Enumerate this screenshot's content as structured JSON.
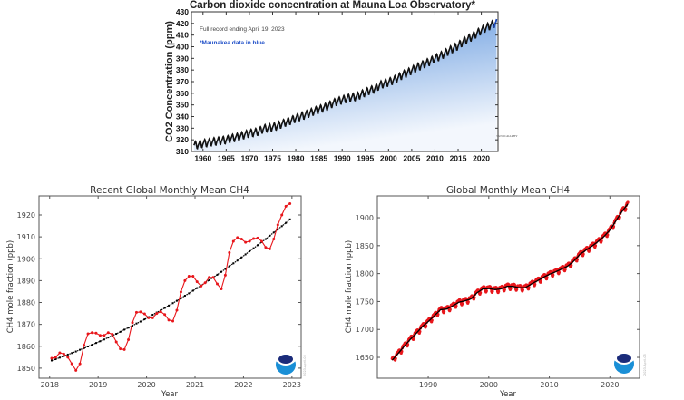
{
  "chart_data": [
    {
      "type": "area",
      "title": "Carbon dioxide concentration at Mauna Loa Observatory*",
      "ylabel": "CO2 Concentration (ppm)",
      "xlabel": "",
      "notes": [
        "Full record ending April 19, 2023",
        "*Maunakea data in blue"
      ],
      "logos": [
        "UC San Diego",
        "SCRIPPS INSTITUTION OF OCEANOGRAPHY"
      ],
      "xlim": [
        1957.5,
        2023.6
      ],
      "ylim": [
        310,
        430
      ],
      "xticks": [
        1960,
        1965,
        1970,
        1975,
        1980,
        1985,
        1990,
        1995,
        2000,
        2005,
        2010,
        2015,
        2020
      ],
      "yticks": [
        310,
        320,
        330,
        340,
        350,
        360,
        370,
        380,
        390,
        400,
        410,
        420,
        430
      ],
      "annual_x": [
        1958,
        1959,
        1960,
        1961,
        1962,
        1963,
        1964,
        1965,
        1966,
        1967,
        1968,
        1969,
        1970,
        1971,
        1972,
        1973,
        1974,
        1975,
        1976,
        1977,
        1978,
        1979,
        1980,
        1981,
        1982,
        1983,
        1984,
        1985,
        1986,
        1987,
        1988,
        1989,
        1990,
        1991,
        1992,
        1993,
        1994,
        1995,
        1996,
        1997,
        1998,
        1999,
        2000,
        2001,
        2002,
        2003,
        2004,
        2005,
        2006,
        2007,
        2008,
        2009,
        2010,
        2011,
        2012,
        2013,
        2014,
        2015,
        2016,
        2017,
        2018,
        2019,
        2020,
        2021,
        2022,
        2023
      ],
      "annual_mean": [
        315.3,
        315.98,
        316.91,
        317.64,
        318.45,
        318.99,
        319.62,
        320.04,
        321.37,
        322.18,
        323.05,
        324.62,
        325.68,
        326.32,
        327.46,
        329.68,
        330.19,
        331.12,
        332.03,
        333.84,
        335.41,
        336.84,
        338.76,
        340.12,
        341.48,
        343.15,
        344.87,
        346.35,
        347.61,
        349.31,
        351.69,
        353.2,
        354.45,
        355.7,
        356.54,
        357.21,
        358.96,
        360.97,
        362.74,
        363.88,
        366.84,
        368.54,
        369.71,
        371.32,
        373.45,
        375.98,
        377.7,
        379.98,
        382.09,
        384.02,
        385.83,
        387.64,
        390.1,
        391.85,
        394.06,
        396.74,
        398.81,
        401.01,
        404.41,
        406.76,
        408.72,
        411.66,
        414.24,
        416.45,
        418.56,
        420.5
      ],
      "seasonal_cycle_ppm": [
        0.0,
        0.7,
        1.4,
        2.6,
        3.1,
        2.4,
        0.8,
        -1.4,
        -3.1,
        -3.3,
        -2.0,
        -0.8
      ],
      "colors": {
        "data": "#111111",
        "fill_top": "#5b93dc",
        "fill_bottom": "#f3f7fd",
        "maunakea": "#1f4fc8",
        "note_blue": "#1f4fc8"
      }
    },
    {
      "type": "line",
      "title": "Recent Global Monthly Mean CH4",
      "xlabel": "Year",
      "ylabel": "CH4 mole fraction (ppb)",
      "stamp": "2023-April-05",
      "xlim": [
        2017.78,
        2023.19
      ],
      "ylim": [
        1845.4,
        1928.7
      ],
      "xticks": [
        2018,
        2019,
        2020,
        2021,
        2022,
        2023
      ],
      "yticks": [
        1850,
        1860,
        1870,
        1880,
        1890,
        1900,
        1910,
        1920
      ],
      "start_year": 2018,
      "monthly": [
        1854.5,
        1855,
        1857,
        1856.5,
        1855,
        1852,
        1849,
        1852,
        1860.5,
        1865.7,
        1866.2,
        1866,
        1865,
        1865,
        1866.2,
        1865.5,
        1862,
        1858.8,
        1858.5,
        1863,
        1870.8,
        1875.5,
        1875.7,
        1874.8,
        1873,
        1873,
        1875,
        1875.8,
        1874.5,
        1872,
        1871.5,
        1876.5,
        1884.8,
        1890,
        1892,
        1892,
        1889.5,
        1887.5,
        1889,
        1891.5,
        1891.5,
        1888.5,
        1886.2,
        1892.5,
        1902.8,
        1908,
        1909.7,
        1909,
        1907.5,
        1908,
        1909.2,
        1909.5,
        1908,
        1905.2,
        1904.5,
        1909,
        1915.5,
        1920,
        1924,
        1925.2
      ],
      "trend": [
        1853.5,
        1854.1,
        1854.8,
        1855.5,
        1856.2,
        1856.9,
        1857.6,
        1858.4,
        1859.1,
        1859.9,
        1860.7,
        1861.5,
        1862.3,
        1863.1,
        1864.0,
        1864.9,
        1865.7,
        1866.6,
        1867.6,
        1868.5,
        1869.4,
        1870.4,
        1871.3,
        1872.3,
        1873.3,
        1874.4,
        1875.4,
        1876.4,
        1877.5,
        1878.6,
        1879.7,
        1880.8,
        1881.9,
        1883.1,
        1884.2,
        1885.4,
        1886.6,
        1887.8,
        1889.0,
        1890.2,
        1891.5,
        1892.7,
        1894.0,
        1895.3,
        1896.6,
        1897.9,
        1899.2,
        1900.6,
        1902.0,
        1903.4,
        1904.8,
        1906.2,
        1907.6,
        1909.0,
        1910.5,
        1912.0,
        1913.4,
        1914.9,
        1916.4,
        1918.0
      ],
      "colors": {
        "monthly": "#e8161b",
        "trend": "#000000"
      }
    },
    {
      "type": "line",
      "title": "Global Monthly Mean CH4",
      "xlabel": "Year",
      "ylabel": "CH4 mole fraction (ppb)",
      "stamp": "2023-April-05",
      "xlim": [
        1981.6,
        2024.9
      ],
      "ylim": [
        1612.7,
        1939
      ],
      "xticks": [
        1990,
        2000,
        2010,
        2020
      ],
      "yticks": [
        1650,
        1700,
        1750,
        1800,
        1850,
        1900
      ],
      "annual_x": [
        1984,
        1985,
        1986,
        1987,
        1988,
        1989,
        1990,
        1991,
        1992,
        1993,
        1994,
        1995,
        1996,
        1997,
        1998,
        1999,
        2000,
        2001,
        2002,
        2003,
        2004,
        2005,
        2006,
        2007,
        2008,
        2009,
        2010,
        2011,
        2012,
        2013,
        2014,
        2015,
        2016,
        2017,
        2018,
        2019,
        2020,
        2021,
        2022
      ],
      "annual_mean": [
        1644.8,
        1657,
        1670,
        1682.3,
        1693.3,
        1705.2,
        1714.4,
        1724.8,
        1735.5,
        1736.5,
        1742.1,
        1748.7,
        1751.2,
        1754.6,
        1765.5,
        1772.7,
        1773.2,
        1771.3,
        1772.7,
        1777.3,
        1777.1,
        1774.7,
        1774.8,
        1781.4,
        1787.1,
        1793.5,
        1798.9,
        1803.2,
        1808.2,
        1813.5,
        1822.5,
        1834.3,
        1841.9,
        1849.2,
        1857.3,
        1866.6,
        1878.2,
        1895.3,
        1911.8
      ],
      "seasonal_cycle_ppb": [
        3,
        4,
        4,
        3,
        0,
        -4,
        -6,
        -4,
        1,
        3,
        3,
        3
      ],
      "colors": {
        "monthly": "#e8161b",
        "trend": "#000000"
      }
    }
  ]
}
